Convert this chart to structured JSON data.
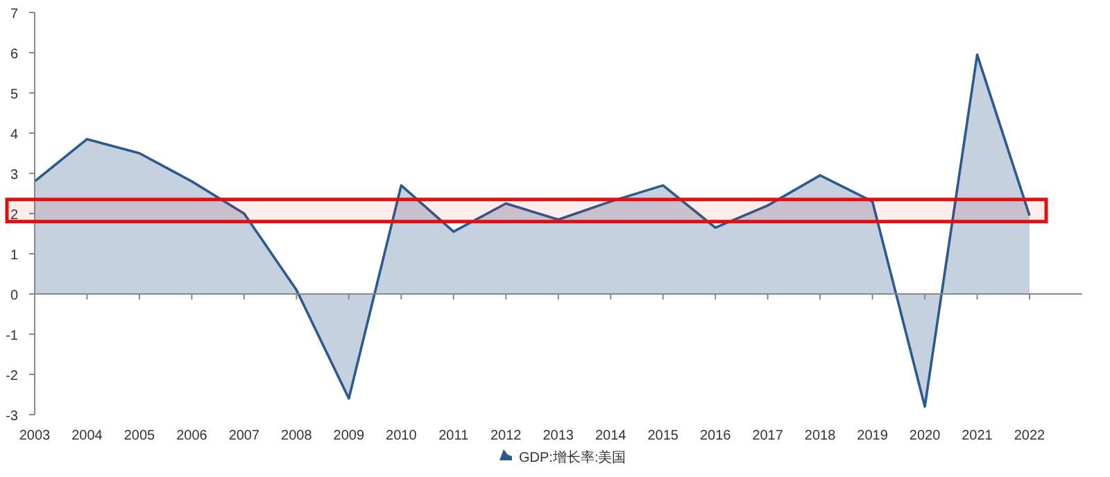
{
  "chart_data": {
    "type": "area",
    "categories": [
      "2003",
      "2004",
      "2005",
      "2006",
      "2007",
      "2008",
      "2009",
      "2010",
      "2011",
      "2012",
      "2013",
      "2014",
      "2015",
      "2016",
      "2017",
      "2018",
      "2019",
      "2020",
      "2021",
      "2022"
    ],
    "series": [
      {
        "name": "GDP:增长率:美国",
        "color": "#2d5a8c",
        "values": [
          2.8,
          3.85,
          3.5,
          2.8,
          2.0,
          0.1,
          -2.6,
          2.7,
          1.55,
          2.25,
          1.85,
          2.3,
          2.7,
          1.65,
          2.2,
          2.95,
          2.3,
          -2.8,
          5.95,
          1.95
        ]
      }
    ],
    "ylim": [
      -3,
      7
    ],
    "yticks": [
      -3,
      -2,
      -1,
      0,
      1,
      2,
      3,
      4,
      5,
      6,
      7
    ],
    "legend": "bottom",
    "bands": [
      {
        "axis": "y",
        "from": 1.8,
        "to": 2.35,
        "color": "#e01010"
      }
    ]
  }
}
